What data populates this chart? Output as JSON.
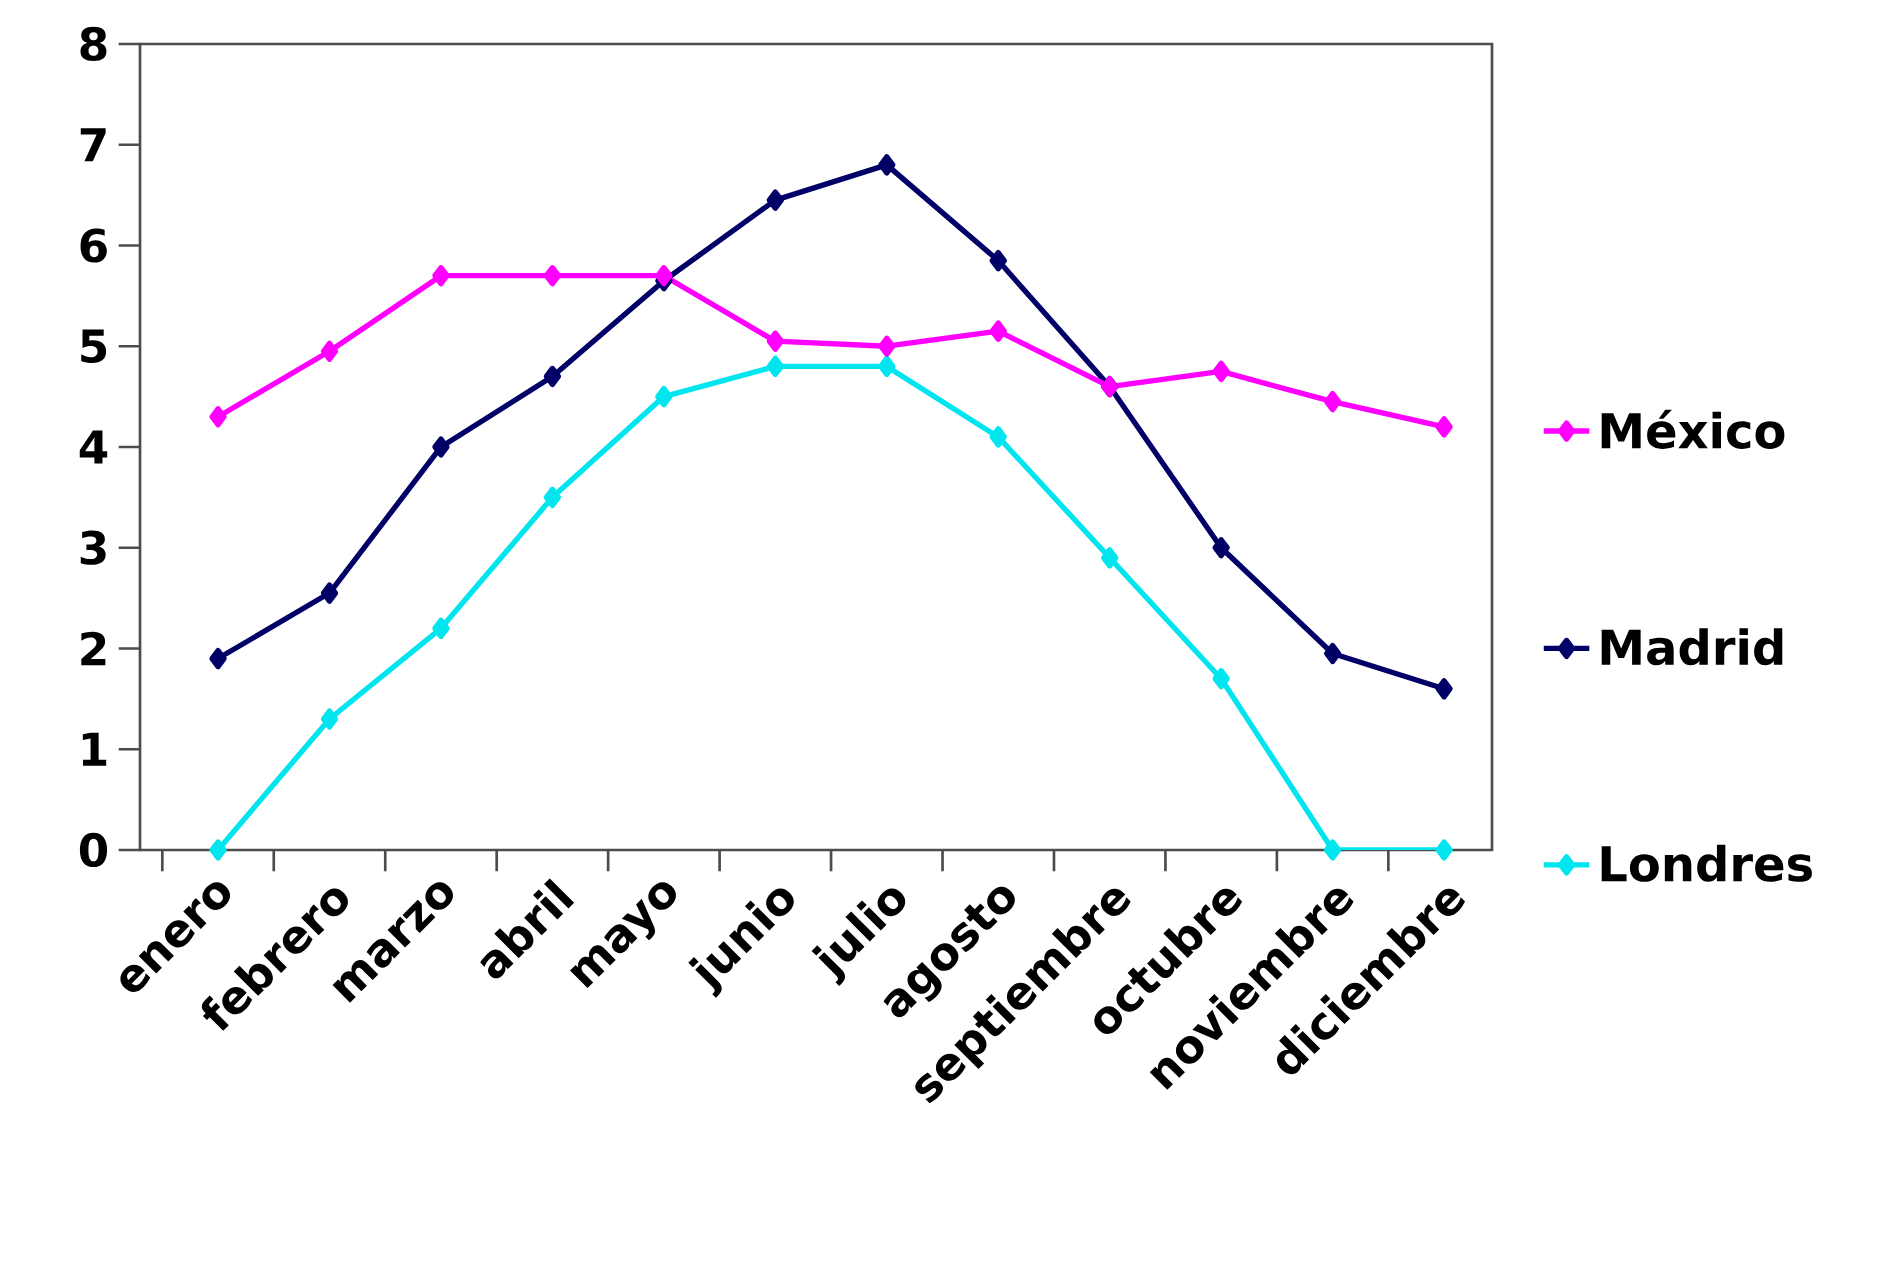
{
  "chart_data": {
    "type": "line",
    "categories": [
      "enero",
      "febrero",
      "marzo",
      "abril",
      "mayo",
      "junio",
      "julio",
      "agosto",
      "septiembre",
      "octubre",
      "noviembre",
      "diciembre"
    ],
    "series": [
      {
        "name": "México",
        "color": "#ff00ff",
        "values": [
          4.3,
          4.95,
          5.7,
          5.7,
          5.7,
          5.05,
          5.0,
          5.15,
          4.6,
          4.75,
          4.45,
          4.2
        ]
      },
      {
        "name": "Madrid",
        "color": "#000066",
        "values": [
          1.9,
          2.55,
          4.0,
          4.7,
          5.65,
          6.45,
          6.8,
          5.85,
          4.6,
          3.0,
          1.95,
          1.6
        ]
      },
      {
        "name": "Londres",
        "color": "#00e5ee",
        "values": [
          0,
          1.3,
          2.2,
          3.5,
          4.5,
          4.8,
          4.8,
          4.1,
          2.9,
          1.7,
          0,
          0
        ]
      }
    ],
    "ylim": [
      0,
      8
    ],
    "yticks": [
      0,
      1,
      2,
      3,
      4,
      5,
      6,
      7,
      8
    ],
    "grid": false,
    "legend": "right",
    "marker": "diamond",
    "line_style": "solid"
  }
}
